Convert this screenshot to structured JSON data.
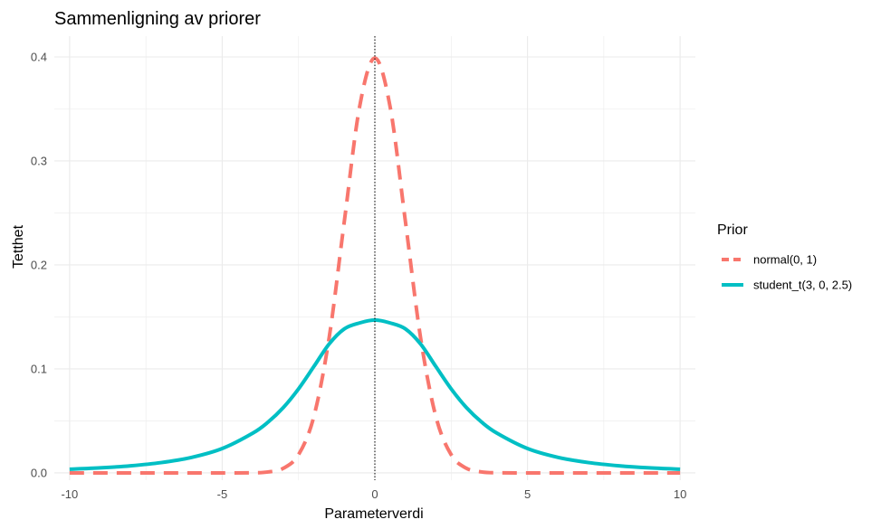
{
  "chart_data": {
    "type": "line",
    "title": "Sammenligning av priorer",
    "xlabel": "Parameterverdi",
    "ylabel": "Tetthet",
    "xlim": [
      -10.5,
      10.5
    ],
    "ylim": [
      -0.007,
      0.42
    ],
    "x_ticks": [
      -10,
      -5,
      0,
      5,
      10
    ],
    "x_tick_labels": [
      "-10",
      "-5",
      "0",
      "5",
      "10"
    ],
    "y_ticks": [
      0.0,
      0.1,
      0.2,
      0.3,
      0.4
    ],
    "y_tick_labels": [
      "0.0",
      "0.1",
      "0.2",
      "0.3",
      "0.4"
    ],
    "grid": true,
    "vline": {
      "x": 0,
      "style": "dotted",
      "color": "#000000"
    },
    "legend": {
      "title": "Prior",
      "position": "right"
    },
    "x": [
      -10,
      -9,
      -8,
      -7,
      -6,
      -5,
      -4,
      -3.5,
      -3,
      -2.5,
      -2,
      -1.5,
      -1,
      -0.5,
      0,
      0.5,
      1,
      1.5,
      2,
      2.5,
      3,
      3.5,
      4,
      5,
      6,
      7,
      8,
      9,
      10
    ],
    "series": [
      {
        "name": "normal(0, 1)",
        "color": "#F8766D",
        "dash": "dashed",
        "values": [
          0,
          0,
          0,
          0,
          0,
          0,
          0.0001,
          0.0009,
          0.0044,
          0.0175,
          0.054,
          0.1295,
          0.242,
          0.3521,
          0.3989,
          0.3521,
          0.242,
          0.1295,
          0.054,
          0.0175,
          0.0044,
          0.0009,
          0.0001,
          0,
          0,
          0,
          0,
          0,
          0
        ]
      },
      {
        "name": "student_t(3, 0, 2.5)",
        "color": "#00BFC4",
        "dash": "solid",
        "values": [
          0.0035,
          0.0048,
          0.0068,
          0.0099,
          0.0149,
          0.0234,
          0.0382,
          0.0488,
          0.0628,
          0.0808,
          0.1022,
          0.1239,
          0.1385,
          0.1442,
          0.147,
          0.1442,
          0.1385,
          0.1239,
          0.1022,
          0.0808,
          0.0628,
          0.0488,
          0.0382,
          0.0234,
          0.0149,
          0.0099,
          0.0068,
          0.0048,
          0.0035
        ]
      }
    ]
  }
}
